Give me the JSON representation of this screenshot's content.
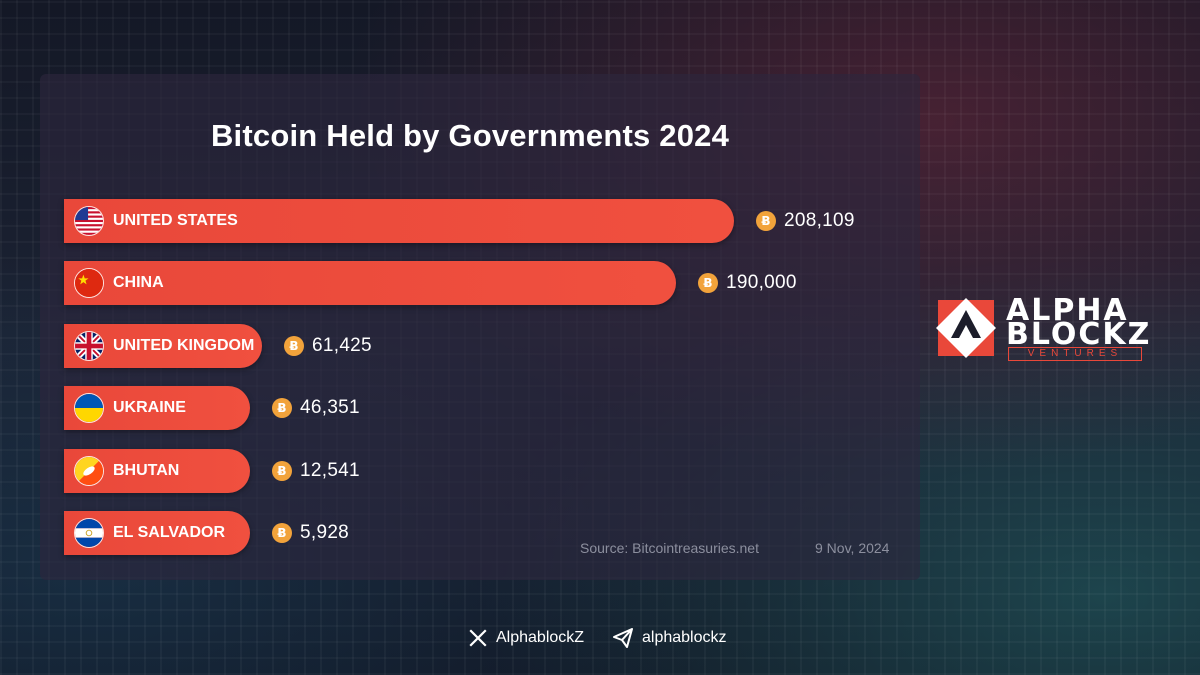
{
  "chart_data": {
    "type": "bar",
    "orientation": "horizontal",
    "title": "Bitcoin Held by Governments 2024",
    "categories": [
      "UNITED STATES",
      "CHINA",
      "UNITED KINGDOM",
      "UKRAINE",
      "BHUTAN",
      "EL SALVADOR"
    ],
    "values": [
      208109,
      190000,
      61425,
      46351,
      12541,
      5928
    ],
    "value_labels": [
      "208,109",
      "190,000",
      "61,425",
      "46,351",
      "12,541",
      "5,928"
    ],
    "flags": [
      "us-flag-icon",
      "china-flag-icon",
      "uk-flag-icon",
      "ukraine-flag-icon",
      "bhutan-flag-icon",
      "el-salvador-flag-icon"
    ],
    "bar_color": "#f0503f",
    "value_icon": "bitcoin-icon",
    "grid": false,
    "legend": "none"
  },
  "footnote": {
    "source": "Source: Bitcointreasuries.net",
    "date": "9 Nov, 2024"
  },
  "brand": {
    "line1": "ALPHA",
    "line2": "BLOCKZ",
    "line3": "VENTURES",
    "accent": "#e9483a"
  },
  "social": {
    "x_handle": "AlphablockZ",
    "telegram_handle": "alphablockz"
  }
}
